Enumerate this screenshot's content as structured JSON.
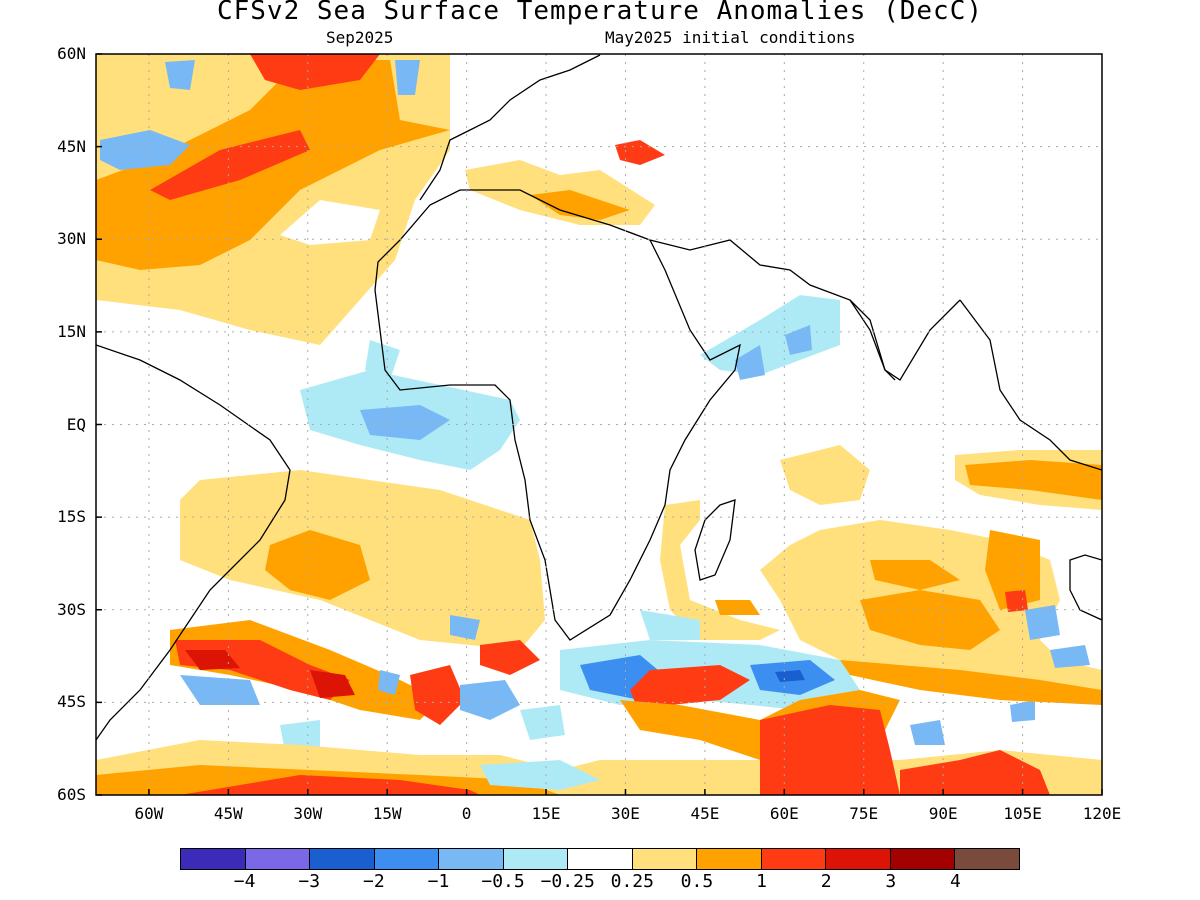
{
  "title": "CFSv2 Sea Surface Temperature Anomalies (DecC)",
  "subtitle_left": "Sep2025",
  "subtitle_right": "May2025 initial conditions",
  "lat_labels": [
    "60N",
    "45N",
    "30N",
    "15N",
    "EQ",
    "15S",
    "30S",
    "45S",
    "60S"
  ],
  "lon_labels": [
    "60W",
    "45W",
    "30W",
    "15W",
    "0",
    "15E",
    "30E",
    "45E",
    "60E",
    "75E",
    "90E",
    "105E",
    "120E"
  ],
  "colorbar": {
    "colors": [
      "#3b2bb8",
      "#7a68e6",
      "#1a5fd0",
      "#3c8ff0",
      "#78b8f5",
      "#aeeaf5",
      "#ffffff",
      "#ffe07d",
      "#ffa200",
      "#ff3b14",
      "#dc1406",
      "#a30000",
      "#7a4a3c"
    ],
    "labels": [
      "−4",
      "−3",
      "−2",
      "−1",
      "−0.5",
      "−0.25",
      "0.25",
      "0.5",
      "1",
      "2",
      "3",
      "4"
    ]
  },
  "colors": {
    "pos_weak": "#ffe07d",
    "pos_mod": "#ffa200",
    "pos_strong": "#ff3b14",
    "pos_vstrong": "#dc1406",
    "neg_weak": "#aeeaf5",
    "neg_mod": "#78b8f5",
    "neg_strong": "#3c8ff0",
    "neg_vstrong": "#1a5fd0",
    "grid": "#aaaaaa"
  }
}
